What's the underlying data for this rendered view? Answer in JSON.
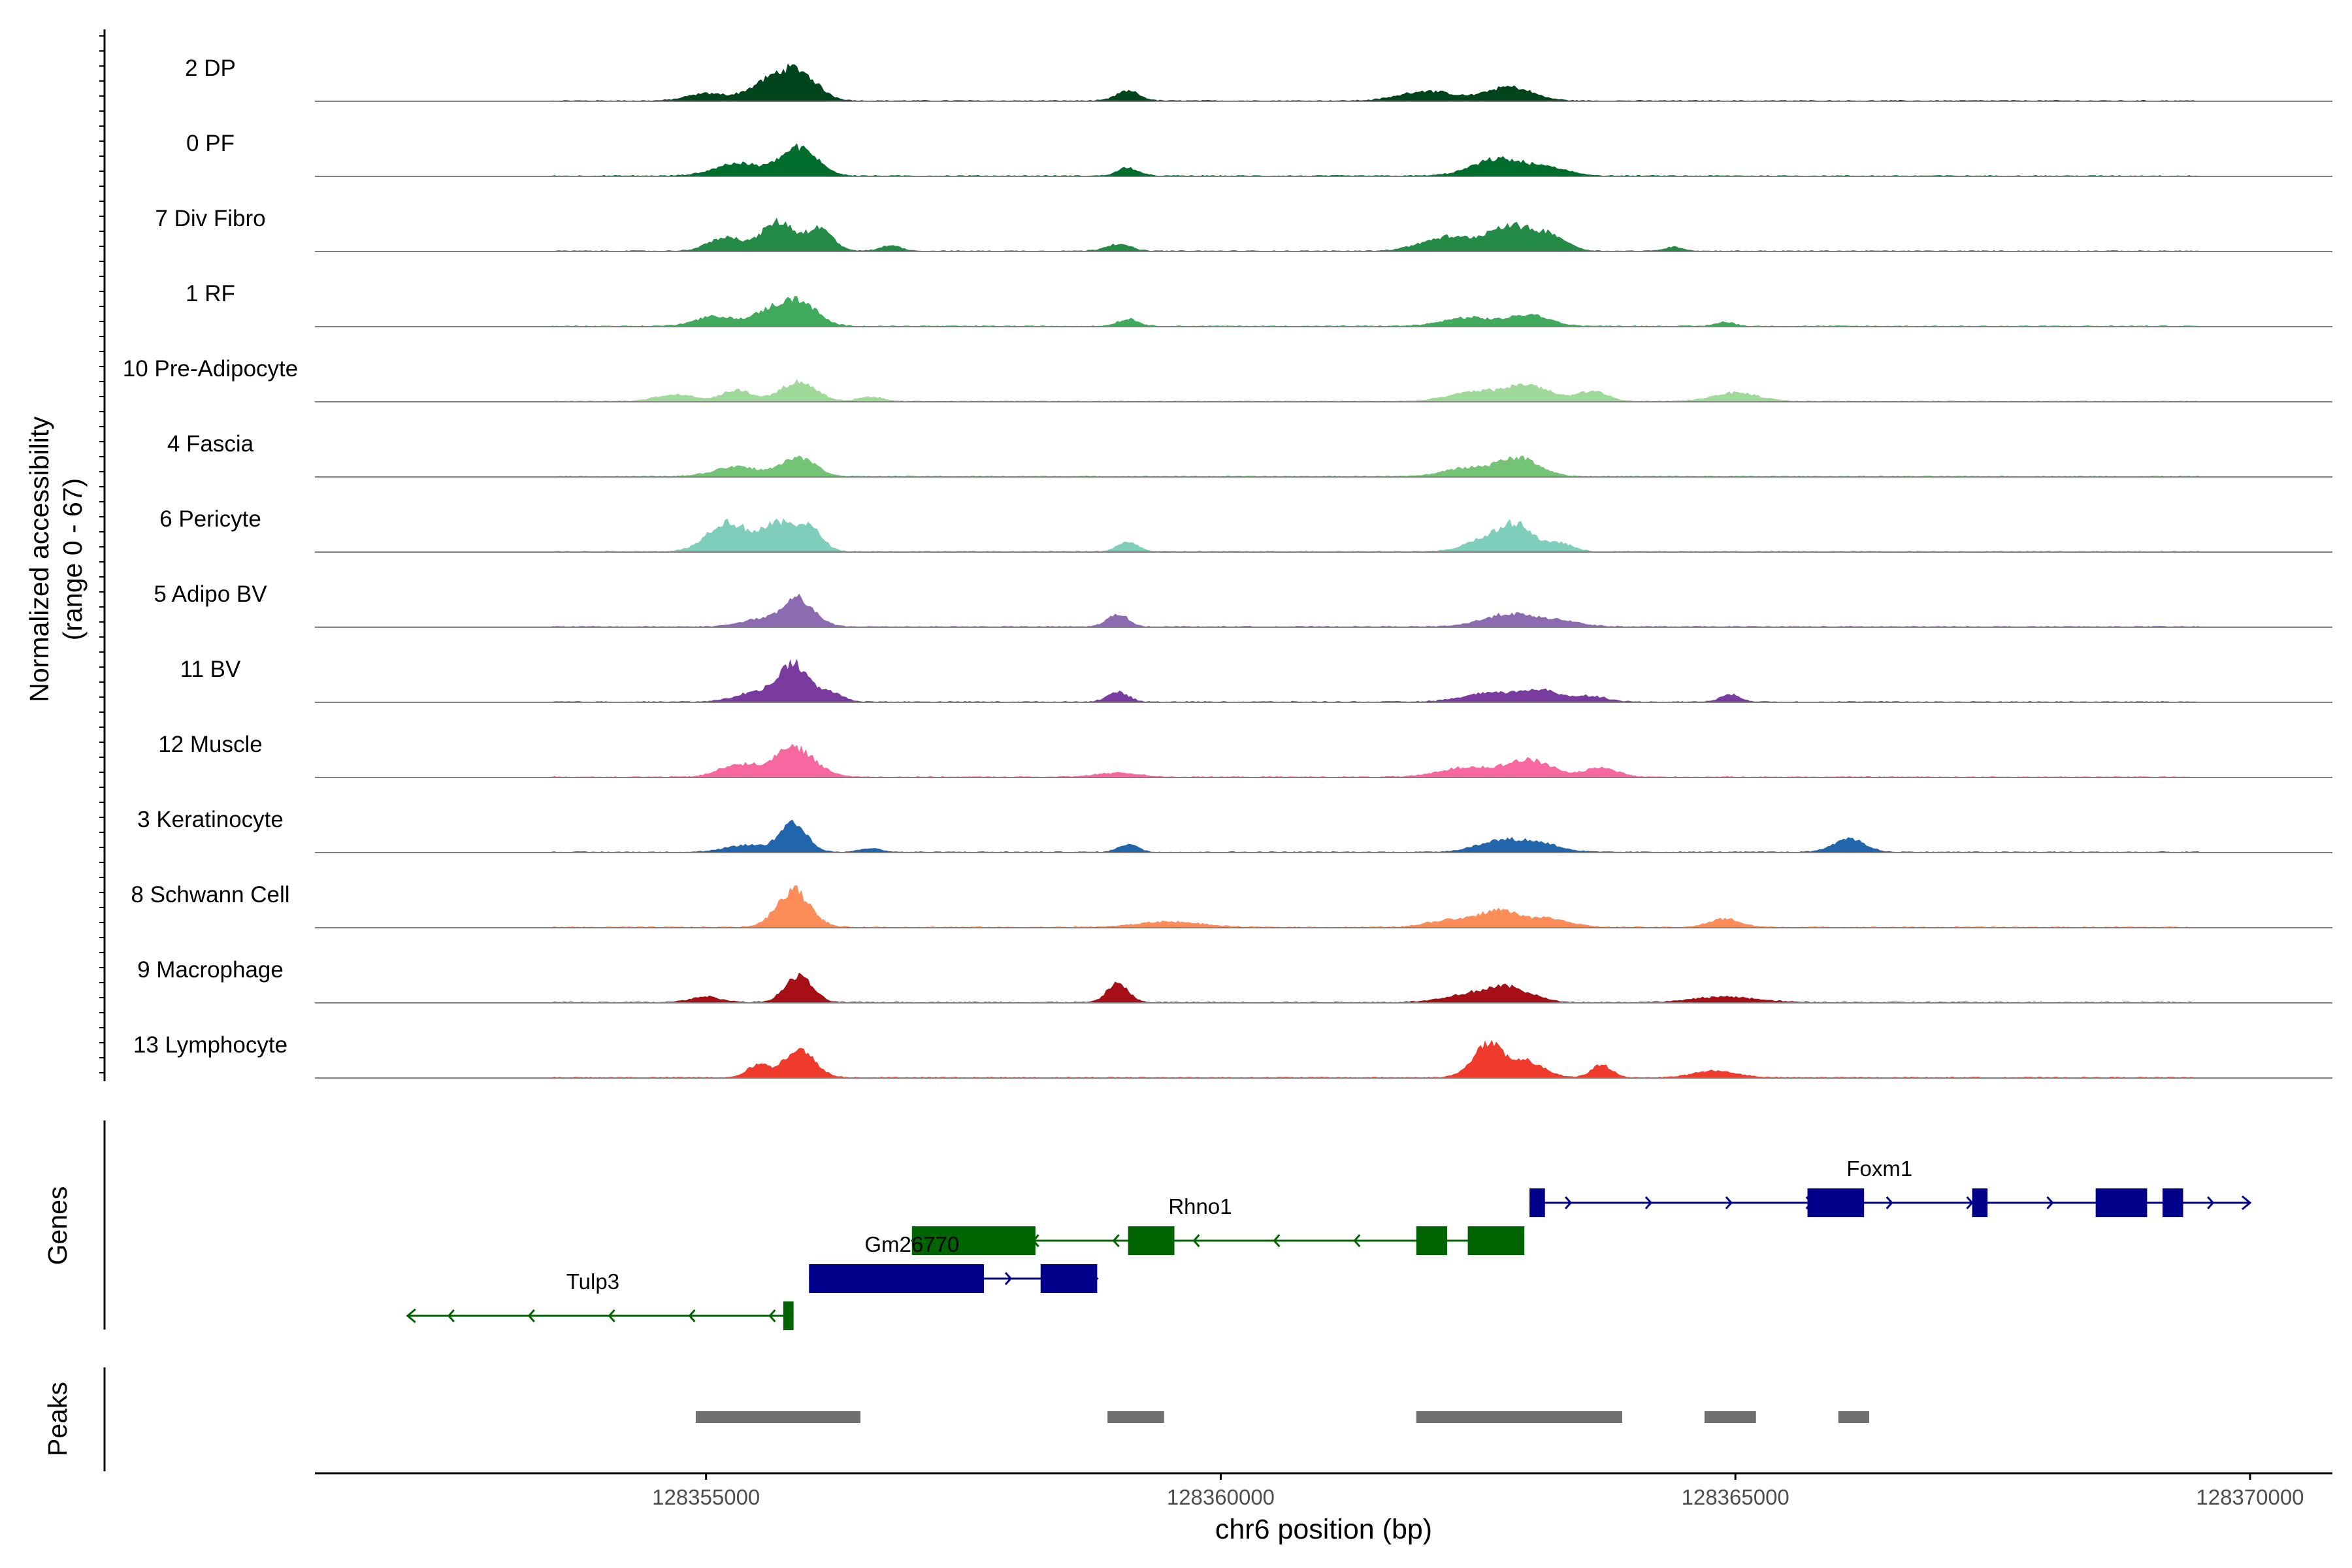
{
  "chart_data": {
    "type": "area",
    "title": "",
    "xlabel": "chr6 position (bp)",
    "xlim": [
      128351200,
      128370800
    ],
    "x_ticks": [
      128355000,
      128360000,
      128365000,
      128370000
    ],
    "x_tick_labels": [
      "128355000",
      "128360000",
      "128365000",
      "128370000"
    ],
    "ylabel": [
      "Normalized accessibility",
      "(range 0 - 67)"
    ],
    "ylim": [
      0,
      67
    ],
    "tracks": [
      {
        "label": "2 DP",
        "color": "#00441b",
        "peaks": [
          [
            128355000,
            10,
            180
          ],
          [
            128355600,
            24,
            200
          ],
          [
            128355900,
            38,
            180
          ],
          [
            128359100,
            14,
            110
          ],
          [
            128362000,
            14,
            250
          ],
          [
            128362800,
            20,
            220
          ]
        ]
      },
      {
        "label": "0 PF",
        "color": "#006d2c",
        "peaks": [
          [
            128355300,
            18,
            220
          ],
          [
            128355900,
            40,
            180
          ],
          [
            128359100,
            12,
            100
          ],
          [
            128362700,
            24,
            250
          ],
          [
            128363200,
            10,
            200
          ]
        ]
      },
      {
        "label": "7 Div Fibro",
        "color": "#238b45",
        "peaks": [
          [
            128355200,
            20,
            170
          ],
          [
            128355700,
            42,
            150
          ],
          [
            128356100,
            32,
            130
          ],
          [
            128356800,
            8,
            100
          ],
          [
            128359000,
            10,
            120
          ],
          [
            128362200,
            20,
            250
          ],
          [
            128362800,
            36,
            200
          ],
          [
            128363200,
            22,
            160
          ],
          [
            128364400,
            6,
            90
          ]
        ]
      },
      {
        "label": "1 RF",
        "color": "#41ab5d",
        "peaks": [
          [
            128355100,
            14,
            200
          ],
          [
            128355600,
            18,
            150
          ],
          [
            128355900,
            36,
            170
          ],
          [
            128359100,
            10,
            100
          ],
          [
            128362400,
            12,
            240
          ],
          [
            128363000,
            16,
            200
          ],
          [
            128364900,
            6,
            90
          ]
        ]
      },
      {
        "label": "10 Pre-Adipocyte",
        "color": "#a1d99b",
        "peaks": [
          [
            128354700,
            10,
            180
          ],
          [
            128355300,
            16,
            150
          ],
          [
            128355900,
            28,
            170
          ],
          [
            128356600,
            6,
            120
          ],
          [
            128362500,
            14,
            260
          ],
          [
            128363000,
            22,
            200
          ],
          [
            128363600,
            14,
            150
          ],
          [
            128365000,
            12,
            220
          ]
        ]
      },
      {
        "label": "4 Fascia",
        "color": "#74c476",
        "peaks": [
          [
            128355300,
            14,
            220
          ],
          [
            128355900,
            28,
            160
          ],
          [
            128362400,
            12,
            230
          ],
          [
            128362900,
            26,
            200
          ]
        ]
      },
      {
        "label": "6 Pericyte",
        "color": "#7fcdbb",
        "peaks": [
          [
            128355200,
            42,
            190
          ],
          [
            128355700,
            38,
            170
          ],
          [
            128356000,
            30,
            130
          ],
          [
            128359100,
            14,
            100
          ],
          [
            128362600,
            20,
            200
          ],
          [
            128362900,
            34,
            150
          ],
          [
            128363300,
            12,
            120
          ]
        ]
      },
      {
        "label": "5 Adipo BV",
        "color": "#8c6bb1",
        "peaks": [
          [
            128355500,
            10,
            180
          ],
          [
            128355900,
            40,
            150
          ],
          [
            128359000,
            18,
            100
          ],
          [
            128362800,
            18,
            250
          ],
          [
            128363300,
            8,
            200
          ]
        ]
      },
      {
        "label": "11 BV",
        "color": "#7a3ba0",
        "peaks": [
          [
            128355500,
            14,
            200
          ],
          [
            128355850,
            52,
            140
          ],
          [
            128356200,
            14,
            120
          ],
          [
            128359000,
            14,
            100
          ],
          [
            128362600,
            12,
            250
          ],
          [
            128363100,
            16,
            200
          ],
          [
            128363600,
            8,
            150
          ],
          [
            128364950,
            10,
            100
          ]
        ]
      },
      {
        "label": "12 Muscle",
        "color": "#f768a1",
        "peaks": [
          [
            128355300,
            18,
            170
          ],
          [
            128355850,
            42,
            200
          ],
          [
            128359000,
            6,
            200
          ],
          [
            128362400,
            14,
            250
          ],
          [
            128363000,
            24,
            220
          ],
          [
            128363700,
            14,
            150
          ]
        ]
      },
      {
        "label": "3 Keratinocyte",
        "color": "#2166ac",
        "peaks": [
          [
            128355400,
            10,
            200
          ],
          [
            128355850,
            40,
            130
          ],
          [
            128356600,
            6,
            100
          ],
          [
            128359100,
            12,
            90
          ],
          [
            128362700,
            16,
            220
          ],
          [
            128363100,
            12,
            200
          ],
          [
            128366100,
            20,
            150
          ]
        ]
      },
      {
        "label": "8 Schwann Cell",
        "color": "#fc8d59",
        "peaks": [
          [
            128355850,
            54,
            160
          ],
          [
            128359500,
            8,
            300
          ],
          [
            128362200,
            10,
            200
          ],
          [
            128362700,
            24,
            200
          ],
          [
            128363200,
            12,
            200
          ],
          [
            128364900,
            12,
            150
          ]
        ]
      },
      {
        "label": "9 Macrophage",
        "color": "#a50f15",
        "peaks": [
          [
            128355000,
            8,
            150
          ],
          [
            128355900,
            38,
            130
          ],
          [
            128359000,
            28,
            100
          ],
          [
            128362400,
            10,
            250
          ],
          [
            128362800,
            20,
            220
          ],
          [
            128364900,
            8,
            300
          ]
        ]
      },
      {
        "label": "13 Lymphocyte",
        "color": "#ef3b2c",
        "peaks": [
          [
            128355900,
            40,
            150
          ],
          [
            128355500,
            18,
            100
          ],
          [
            128362600,
            48,
            150
          ],
          [
            128363000,
            22,
            150
          ],
          [
            128363700,
            18,
            100
          ],
          [
            128364800,
            10,
            200
          ]
        ]
      }
    ],
    "genes_label": "Genes",
    "genes": [
      {
        "name": "Foxm1",
        "strand": "+",
        "color": "#00008b",
        "start": 128363000,
        "end": 128370000,
        "exons": [
          [
            128363000,
            128363150
          ],
          [
            128365700,
            128366250
          ],
          [
            128367300,
            128367450
          ],
          [
            128368500,
            128369000
          ],
          [
            128369150,
            128369350
          ]
        ],
        "label_x": 128366400
      },
      {
        "name": "Rhno1",
        "strand": "-",
        "color": "#006400",
        "start": 128357000,
        "end": 128362900,
        "exons": [
          [
            128357000,
            128358200
          ],
          [
            128359100,
            128359550
          ],
          [
            128361900,
            128362200
          ],
          [
            128362400,
            128362950
          ]
        ],
        "label_x": 128359800
      },
      {
        "name": "Gm26770",
        "strand": "+",
        "color": "#00008b",
        "start": 128356000,
        "end": 128358800,
        "exons": [
          [
            128356000,
            128357700
          ],
          [
            128358250,
            128358800
          ]
        ],
        "label_x": 128357000
      },
      {
        "name": "Tulp3",
        "strand": "-",
        "color": "#006400",
        "start": 128352100,
        "end": 128355850,
        "exons": [
          [
            128355750,
            128355850
          ]
        ],
        "label_x": 128353900
      }
    ],
    "peaks_label": "Peaks",
    "peak_regions": [
      [
        128354900,
        128356500
      ],
      [
        128358900,
        128359450
      ],
      [
        128361900,
        128363900
      ],
      [
        128364700,
        128365200
      ],
      [
        128366000,
        128366300
      ]
    ]
  }
}
